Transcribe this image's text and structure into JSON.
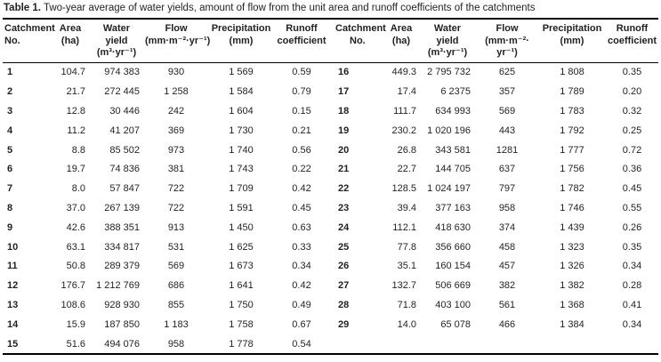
{
  "title": {
    "label": "Table 1.",
    "text": " Two-year average of water yields, amount of flow from the unit area and runoff coefficients of the catchments"
  },
  "table": {
    "header_left": [
      [
        "Catchment",
        "No."
      ],
      [
        "Area",
        "(ha)"
      ],
      [
        "Water",
        "yield",
        "(m³·yr⁻¹)"
      ],
      [
        "Flow",
        "(mm·m⁻²·yr⁻¹)"
      ],
      [
        "Precipitation",
        "(mm)"
      ],
      [
        "Runoff",
        "coefficient"
      ]
    ],
    "header_right": [
      [
        "Catchment",
        "No."
      ],
      [
        "Area",
        "(ha)"
      ],
      [
        "Water",
        "yield",
        "(m³·yr⁻¹)"
      ],
      [
        "Flow",
        "(mm·m⁻²· yr⁻¹)"
      ],
      [
        "Precipitation",
        "(mm)"
      ],
      [
        "Runoff",
        "coefficient"
      ]
    ],
    "rows_left": [
      [
        "1",
        "104.7",
        "974 383",
        "930",
        "1 569",
        "0.59"
      ],
      [
        "2",
        "21.7",
        "272 445",
        "1 258",
        "1 584",
        "0.79"
      ],
      [
        "3",
        "12.8",
        "30 446",
        "242",
        "1 604",
        "0.15"
      ],
      [
        "4",
        "11.2",
        "41 207",
        "369",
        "1 730",
        "0.21"
      ],
      [
        "5",
        "8.8",
        "85 502",
        "973",
        "1 740",
        "0.56"
      ],
      [
        "6",
        "19.7",
        "74 836",
        "381",
        "1 743",
        "0.22"
      ],
      [
        "7",
        "8.0",
        "57 847",
        "722",
        "1 709",
        "0.42"
      ],
      [
        "8",
        "37.0",
        "267 139",
        "722",
        "1 591",
        "0.45"
      ],
      [
        "9",
        "42.6",
        "388 351",
        "913",
        "1 450",
        "0.63"
      ],
      [
        "10",
        "63.1",
        "334 817",
        "531",
        "1 625",
        "0.33"
      ],
      [
        "11",
        "50.8",
        "289 379",
        "569",
        "1 673",
        "0.34"
      ],
      [
        "12",
        "176.7",
        "1 212 769",
        "686",
        "1 641",
        "0.42"
      ],
      [
        "13",
        "108.6",
        "928 930",
        "855",
        "1 750",
        "0.49"
      ],
      [
        "14",
        "15.9",
        "187 850",
        "1 183",
        "1 758",
        "0.67"
      ],
      [
        "15",
        "51.6",
        "494 076",
        "958",
        "1 778",
        "0.54"
      ]
    ],
    "rows_right": [
      [
        "16",
        "449.3",
        "2 795 732",
        "625",
        "1 808",
        "0.35"
      ],
      [
        "17",
        "17.4",
        "6 2375",
        "357",
        "1 789",
        "0.20"
      ],
      [
        "18",
        "111.7",
        "634 993",
        "569",
        "1 783",
        "0.32"
      ],
      [
        "19",
        "230.2",
        "1 020 196",
        "443",
        "1 792",
        "0.25"
      ],
      [
        "20",
        "26.8",
        "343 581",
        "1281",
        "1 777",
        "0.72"
      ],
      [
        "21",
        "22.7",
        "144 705",
        "637",
        "1 756",
        "0.36"
      ],
      [
        "22",
        "128.5",
        "1 024 197",
        "797",
        "1 782",
        "0.45"
      ],
      [
        "23",
        "39.4",
        "377 163",
        "958",
        "1 746",
        "0.55"
      ],
      [
        "24",
        "112.1",
        "418 630",
        "374",
        "1 439",
        "0.26"
      ],
      [
        "25",
        "77.8",
        "356 660",
        "458",
        "1 323",
        "0.35"
      ],
      [
        "26",
        "35.1",
        "160 154",
        "457",
        "1 326",
        "0.34"
      ],
      [
        "27",
        "132.7",
        "506 669",
        "382",
        "1 382",
        "0.28"
      ],
      [
        "28",
        "71.8",
        "403 100",
        "561",
        "1 368",
        "0.41"
      ],
      [
        "29",
        "14.0",
        "65 078",
        "466",
        "1 384",
        "0.34"
      ]
    ]
  },
  "colors": {
    "text": "#231f20",
    "rule": "#000000",
    "background": "#ffffff"
  }
}
